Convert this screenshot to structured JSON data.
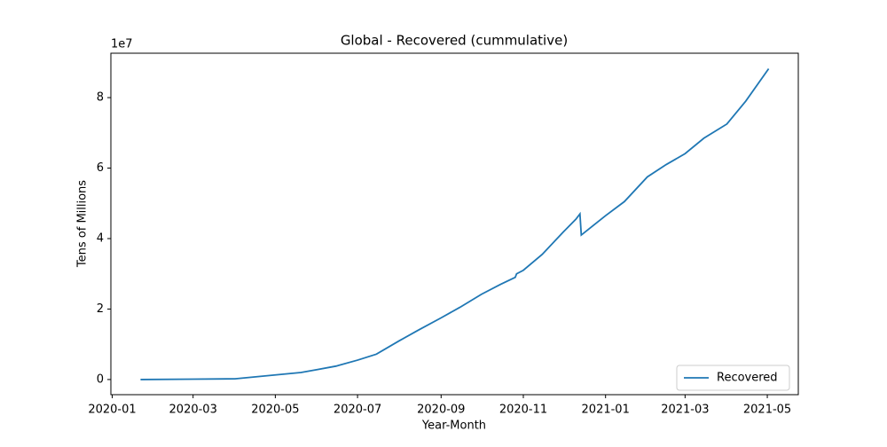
{
  "chart_data": {
    "type": "line",
    "title": "Global - Recovered (cummulative)",
    "x_label": "Year-Month",
    "y_label": "Tens of Millions",
    "y_offset_label": "1e7",
    "x": [
      "2020-01-22",
      "2020-03-01",
      "2020-04-01",
      "2020-05-01",
      "2020-05-20",
      "2020-06-01",
      "2020-06-15",
      "2020-07-01",
      "2020-07-15",
      "2020-08-01",
      "2020-08-15",
      "2020-09-01",
      "2020-09-15",
      "2020-10-01",
      "2020-10-15",
      "2020-10-26",
      "2020-10-27",
      "2020-11-01",
      "2020-11-15",
      "2020-12-01",
      "2020-12-10",
      "2020-12-13",
      "2020-12-14",
      "2021-01-01",
      "2021-01-15",
      "2021-02-01",
      "2021-02-15",
      "2021-03-01",
      "2021-03-15",
      "2021-04-01",
      "2021-04-15",
      "2021-05-02"
    ],
    "series": [
      {
        "name": "Recovered",
        "color": "#1f77b4",
        "values": [
          0,
          0.01,
          0.02,
          0.13,
          0.2,
          0.28,
          0.38,
          0.55,
          0.72,
          1.1,
          1.4,
          1.75,
          2.05,
          2.42,
          2.7,
          2.9,
          3.0,
          3.1,
          3.55,
          4.2,
          4.55,
          4.7,
          4.1,
          4.65,
          5.05,
          5.75,
          6.1,
          6.41,
          6.85,
          7.25,
          7.9,
          8.82
        ]
      }
    ],
    "xlim": [
      "2019-12-31",
      "2021-05-24"
    ],
    "xticks": [
      {
        "value": "2020-01-01",
        "label": "2020-01"
      },
      {
        "value": "2020-03-01",
        "label": "2020-03"
      },
      {
        "value": "2020-05-01",
        "label": "2020-05"
      },
      {
        "value": "2020-07-01",
        "label": "2020-07"
      },
      {
        "value": "2020-09-01",
        "label": "2020-09"
      },
      {
        "value": "2020-11-01",
        "label": "2020-11"
      },
      {
        "value": "2021-01-01",
        "label": "2021-01"
      },
      {
        "value": "2021-03-01",
        "label": "2021-03"
      },
      {
        "value": "2021-05-01",
        "label": "2021-05"
      }
    ],
    "ylim": [
      -0.43,
      9.26
    ],
    "yticks": [
      0,
      2,
      4,
      6,
      8
    ],
    "legend": "lower right",
    "grid": false
  }
}
